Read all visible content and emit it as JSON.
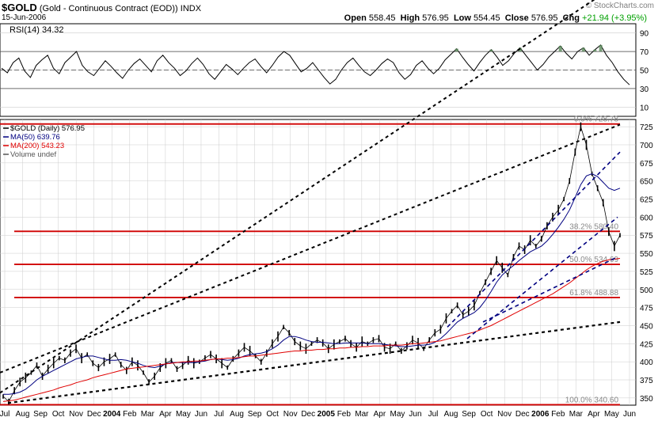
{
  "header": {
    "symbol": "$GOLD",
    "name": "(Gold - Continuous Contract (EOD))",
    "exchange": "INDX",
    "date": "15-Jun-2006",
    "open_label": "Open",
    "open": "558.45",
    "high_label": "High",
    "high": "576.95",
    "low_label": "Low",
    "low": "554.45",
    "close_label": "Close",
    "close": "576.95",
    "chg_label": "Chg",
    "chg": "+21.94 (+3.95%)",
    "watermark": "© StockCharts.com"
  },
  "colors": {
    "price": "#000000",
    "ma50": "#000080",
    "ma200": "#e00000",
    "fib": "#d00000",
    "trend": "#000000",
    "channel": "#000080",
    "rsi": "#000000",
    "rsi_fill": "#5a8a5a",
    "grid": "#cccccc"
  },
  "chart_data": [
    {
      "type": "line",
      "title": "RSI(14) 34.32",
      "ylim": [
        0,
        100
      ],
      "yticks": [
        "10",
        "30",
        "50",
        "70",
        "90"
      ],
      "reference_lines": [
        30,
        50,
        70
      ],
      "series": [
        {
          "name": "RSI(14)",
          "values": [
            52,
            47,
            58,
            63,
            49,
            42,
            55,
            61,
            66,
            52,
            46,
            58,
            64,
            70,
            55,
            48,
            44,
            52,
            60,
            54,
            47,
            41,
            50,
            57,
            62,
            55,
            48,
            60,
            66,
            58,
            52,
            44,
            49,
            57,
            63,
            56,
            46,
            40,
            48,
            56,
            51,
            45,
            52,
            58,
            62,
            54,
            47,
            55,
            64,
            70,
            66,
            57,
            48,
            52,
            58,
            50,
            42,
            35,
            40,
            50,
            58,
            63,
            55,
            48,
            44,
            50,
            57,
            62,
            58,
            47,
            40,
            45,
            55,
            60,
            52,
            46,
            52,
            61,
            67,
            73,
            64,
            56,
            49,
            58,
            66,
            72,
            64,
            55,
            60,
            68,
            74,
            66,
            58,
            50,
            56,
            64,
            70,
            76,
            68,
            62,
            70,
            74,
            66,
            72,
            77,
            66,
            58,
            48,
            40,
            34
          ]
        }
      ]
    },
    {
      "type": "line",
      "title": "$GOLD (Daily) 576.95",
      "ylim": [
        340,
        735
      ],
      "yticks": [
        "350",
        "375",
        "400",
        "425",
        "450",
        "475",
        "500",
        "525",
        "550",
        "575",
        "600",
        "625",
        "650",
        "675",
        "700",
        "725"
      ],
      "xlabels": [
        "Jul",
        "Aug",
        "Sep",
        "Oct",
        "Nov",
        "Dec",
        "2004",
        "Feb",
        "Mar",
        "Apr",
        "May",
        "Jun",
        "Jul",
        "Aug",
        "Sep",
        "Oct",
        "Nov",
        "Dec",
        "2005",
        "Feb",
        "Mar",
        "Apr",
        "May",
        "Jun",
        "Jul",
        "Aug",
        "Sep",
        "Oct",
        "Nov",
        "Dec",
        "2006",
        "Feb",
        "Mar",
        "Apr",
        "May",
        "Jun"
      ],
      "legend": [
        "$GOLD (Daily) 576.95",
        "MA(50) 639.76",
        "MA(200) 543.23",
        "Volume undef"
      ],
      "fib_levels": [
        {
          "label": "0.0% 728.78",
          "value": 728.78
        },
        {
          "label": "38.2% 580.40",
          "value": 580.4
        },
        {
          "label": "50.0% 534.69",
          "value": 534.69
        },
        {
          "label": "61.8% 488.88",
          "value": 488.88
        },
        {
          "label": "100.0% 340.60",
          "value": 340.6
        }
      ],
      "months_index": [
        0,
        1,
        2,
        3,
        4,
        5,
        6,
        7,
        8,
        9,
        10,
        11,
        12,
        13,
        14,
        15,
        16,
        17,
        18,
        19,
        20,
        21,
        22,
        23,
        24,
        25,
        26,
        27,
        28,
        29,
        30,
        31,
        32,
        33,
        34,
        35
      ],
      "series": [
        {
          "name": "$GOLD (Daily) 576.95",
          "values": [
            352,
            345,
            360,
            372,
            378,
            385,
            395,
            380,
            390,
            398,
            405,
            402,
            412,
            418,
            405,
            410,
            398,
            392,
            400,
            404,
            410,
            396,
            388,
            400,
            395,
            385,
            372,
            380,
            392,
            398,
            402,
            390,
            395,
            402,
            398,
            400,
            405,
            410,
            404,
            398,
            392,
            404,
            412,
            420,
            415,
            408,
            400,
            412,
            425,
            435,
            448,
            440,
            428,
            422,
            418,
            425,
            430,
            426,
            418,
            424,
            428,
            432,
            425,
            420,
            428,
            425,
            430,
            432,
            420,
            418,
            425,
            415,
            422,
            430,
            426,
            418,
            430,
            440,
            445,
            460,
            470,
            478,
            465,
            470,
            478,
            495,
            510,
            525,
            540,
            530,
            520,
            545,
            560,
            555,
            568,
            560,
            570,
            588,
            600,
            610,
            625,
            650,
            690,
            725,
            700,
            660,
            640,
            620,
            580,
            560,
            575
          ]
        },
        {
          "name": "MA(50) 639.76",
          "values": [
            355,
            355,
            356,
            358,
            362,
            368,
            375,
            380,
            384,
            388,
            392,
            396,
            400,
            404,
            406,
            408,
            408,
            406,
            404,
            402,
            402,
            403,
            402,
            400,
            398,
            395,
            393,
            392,
            394,
            397,
            399,
            399,
            399,
            399,
            399,
            400,
            401,
            403,
            404,
            403,
            402,
            403,
            405,
            408,
            410,
            411,
            412,
            414,
            418,
            423,
            430,
            435,
            435,
            433,
            430,
            428,
            427,
            427,
            426,
            425,
            425,
            426,
            426,
            426,
            426,
            425,
            425,
            425,
            424,
            423,
            422,
            421,
            421,
            422,
            423,
            423,
            424,
            427,
            432,
            439,
            447,
            455,
            460,
            464,
            468,
            475,
            485,
            497,
            510,
            520,
            527,
            533,
            540,
            546,
            552,
            556,
            560,
            567,
            576,
            586,
            597,
            610,
            627,
            645,
            657,
            660,
            656,
            648,
            640,
            637,
            640
          ]
        },
        {
          "name": "MA(200) 543.23",
          "values": [
            345,
            346,
            347,
            349,
            351,
            353,
            355,
            357,
            359,
            361,
            364,
            366,
            368,
            371,
            373,
            375,
            378,
            380,
            382,
            384,
            386,
            388,
            390,
            391,
            392,
            393,
            394,
            395,
            396,
            397,
            398,
            399,
            400,
            400,
            401,
            401,
            402,
            403,
            404,
            404,
            405,
            405,
            406,
            407,
            408,
            408,
            409,
            410,
            411,
            412,
            413,
            414,
            415,
            415,
            416,
            416,
            417,
            417,
            418,
            418,
            419,
            419,
            420,
            420,
            421,
            421,
            422,
            422,
            422,
            423,
            423,
            423,
            424,
            425,
            425,
            426,
            427,
            428,
            429,
            431,
            433,
            435,
            437,
            439,
            441,
            444,
            447,
            450,
            454,
            458,
            462,
            466,
            470,
            474,
            478,
            482,
            486,
            490,
            494,
            499,
            504,
            509,
            515,
            521,
            527,
            532,
            536,
            539,
            541,
            542,
            543
          ]
        }
      ]
    }
  ]
}
